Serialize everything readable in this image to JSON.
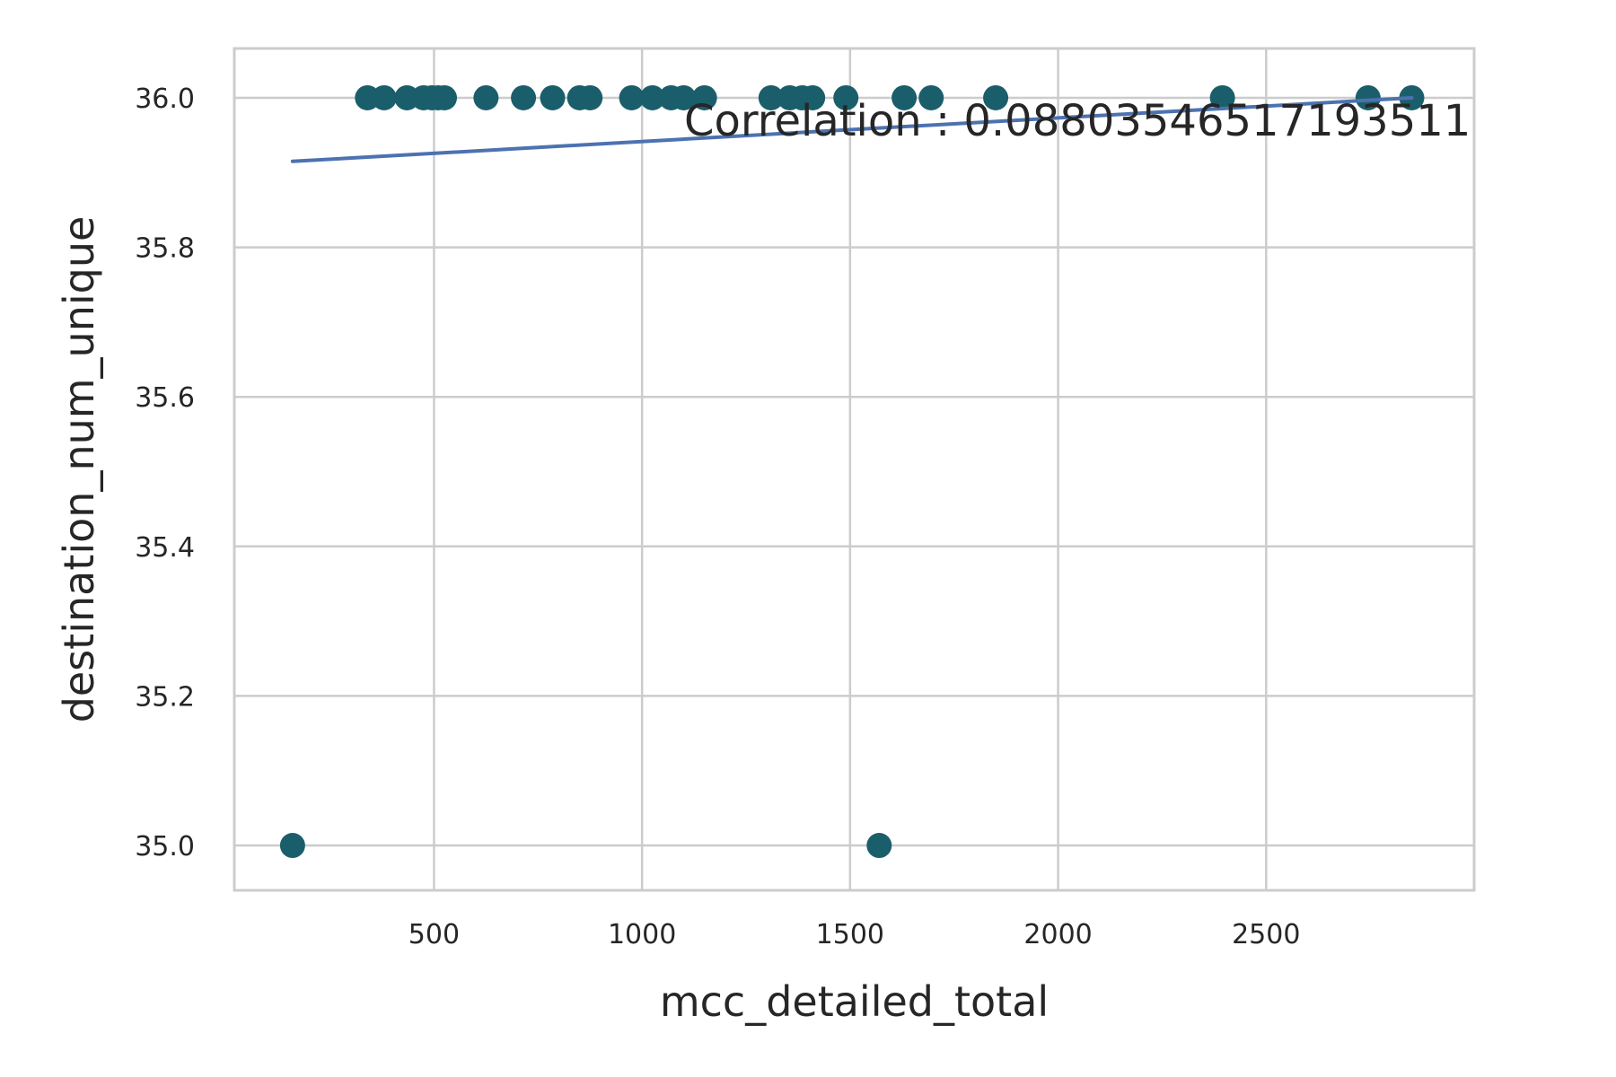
{
  "chart_data": {
    "type": "scatter",
    "title": "",
    "xlabel": "mcc_detailed_total",
    "ylabel": "destination_num_unique",
    "xlim": [
      20,
      3000
    ],
    "ylim": [
      34.94,
      36.066
    ],
    "xticks": [
      500,
      1000,
      1500,
      2000,
      2500
    ],
    "xtick_labels": [
      "500",
      "1000",
      "1500",
      "2000",
      "2500"
    ],
    "yticks": [
      35.0,
      35.2,
      35.4,
      35.6,
      35.8,
      36.0
    ],
    "ytick_labels": [
      "35.0",
      "35.2",
      "35.4",
      "35.6",
      "35.8",
      "36.0"
    ],
    "grid": true,
    "point_color": "#1b5e6b",
    "line_color": "#4c72b0",
    "grid_color": "#cccccc",
    "points": [
      {
        "x": 160,
        "y": 35.0
      },
      {
        "x": 340,
        "y": 36.0
      },
      {
        "x": 380,
        "y": 36.0
      },
      {
        "x": 435,
        "y": 36.0
      },
      {
        "x": 475,
        "y": 36.0
      },
      {
        "x": 495,
        "y": 36.0
      },
      {
        "x": 510,
        "y": 36.0
      },
      {
        "x": 525,
        "y": 36.0
      },
      {
        "x": 625,
        "y": 36.0
      },
      {
        "x": 715,
        "y": 36.0
      },
      {
        "x": 785,
        "y": 36.0
      },
      {
        "x": 850,
        "y": 36.0
      },
      {
        "x": 875,
        "y": 36.0
      },
      {
        "x": 975,
        "y": 36.0
      },
      {
        "x": 1025,
        "y": 36.0
      },
      {
        "x": 1070,
        "y": 36.0
      },
      {
        "x": 1100,
        "y": 36.0
      },
      {
        "x": 1150,
        "y": 36.0
      },
      {
        "x": 1310,
        "y": 36.0
      },
      {
        "x": 1355,
        "y": 36.0
      },
      {
        "x": 1385,
        "y": 36.0
      },
      {
        "x": 1410,
        "y": 36.0
      },
      {
        "x": 1490,
        "y": 36.0
      },
      {
        "x": 1570,
        "y": 35.0
      },
      {
        "x": 1630,
        "y": 36.0
      },
      {
        "x": 1695,
        "y": 36.0
      },
      {
        "x": 1850,
        "y": 36.0
      },
      {
        "x": 2395,
        "y": 36.0
      },
      {
        "x": 2745,
        "y": 36.0
      },
      {
        "x": 2850,
        "y": 36.0
      }
    ],
    "regression_line": {
      "x": [
        160,
        2850
      ],
      "y": [
        35.915,
        36.0
      ]
    },
    "annotation": "Correlation : 0.08803546517193511"
  }
}
